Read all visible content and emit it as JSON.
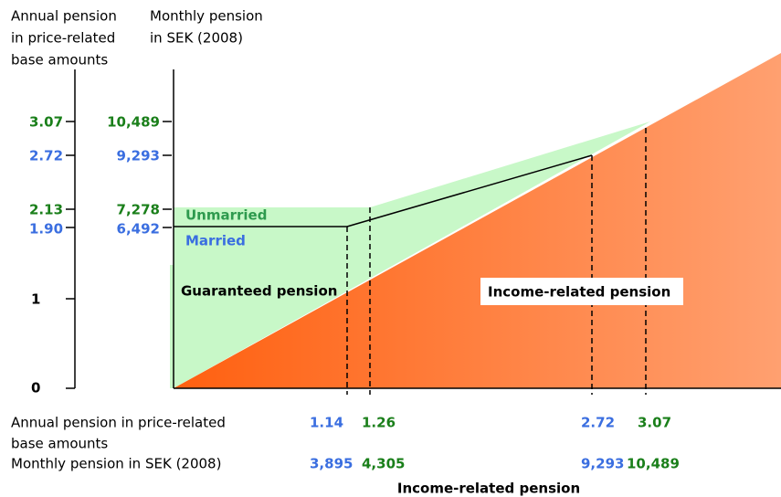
{
  "left_axis": {
    "title": [
      "Annual pension",
      "in price-related",
      "base amounts"
    ],
    "ticks": [
      "3.07",
      "2.72",
      "2.13",
      "1.90",
      "1",
      "0"
    ]
  },
  "right_axis": {
    "title": [
      "Monthly pension",
      "in SEK (2008)"
    ],
    "ticks": [
      "10,489",
      "9,293",
      "7,278",
      "6,492"
    ]
  },
  "labels": {
    "unmarried": "Unmarried",
    "married": "Married",
    "guaranteed": "Guaranteed pension",
    "income": "Income-related pension"
  },
  "bottom": {
    "row1_title": [
      "Annual pension in price-related",
      "base amounts"
    ],
    "row1": [
      "1.14",
      "1.26",
      "2.72",
      "3.07"
    ],
    "row2_title": "Monthly pension in SEK (2008)",
    "row2": [
      "3,895",
      "4,305",
      "9,293",
      "10,489"
    ],
    "axis_title": "Income-related pension"
  }
}
